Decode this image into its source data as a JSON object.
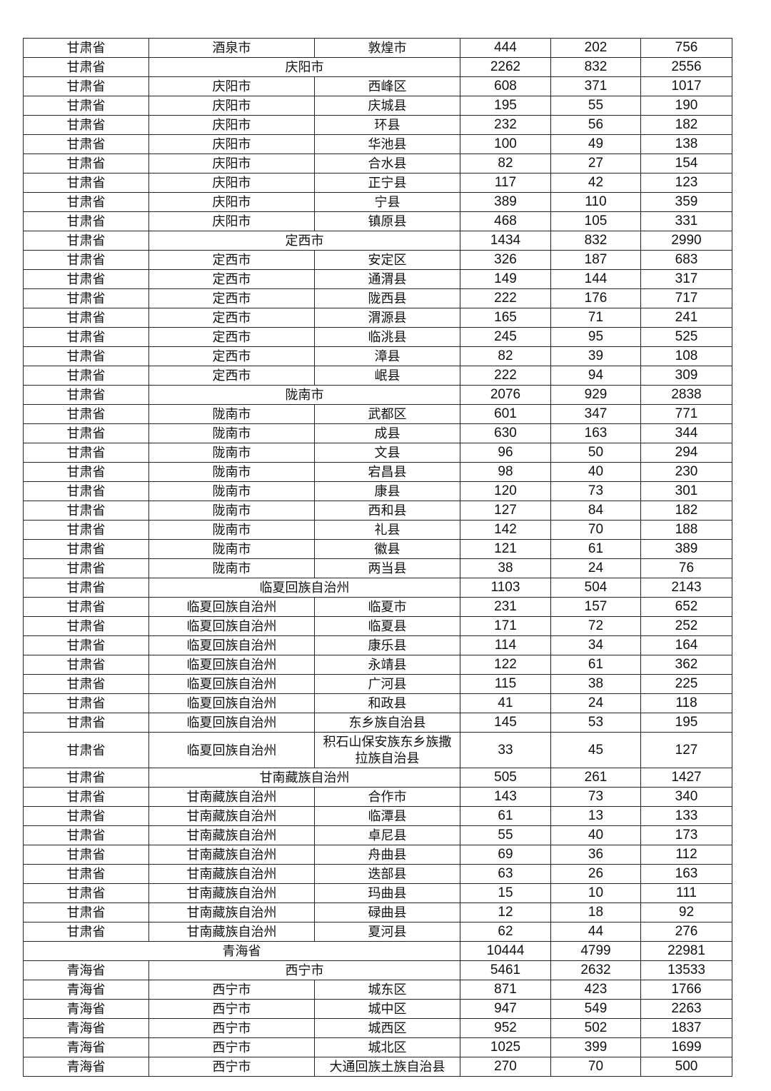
{
  "rows": [
    {
      "type": "county",
      "province": "甘肃省",
      "city": "酒泉市",
      "county": "敦煌市",
      "v1": "444",
      "v2": "202",
      "v3": "756"
    },
    {
      "type": "city",
      "province": "甘肃省",
      "city": "庆阳市",
      "v1": "2262",
      "v2": "832",
      "v3": "2556"
    },
    {
      "type": "county",
      "province": "甘肃省",
      "city": "庆阳市",
      "county": "西峰区",
      "v1": "608",
      "v2": "371",
      "v3": "1017"
    },
    {
      "type": "county",
      "province": "甘肃省",
      "city": "庆阳市",
      "county": "庆城县",
      "v1": "195",
      "v2": "55",
      "v3": "190"
    },
    {
      "type": "county",
      "province": "甘肃省",
      "city": "庆阳市",
      "county": "环县",
      "v1": "232",
      "v2": "56",
      "v3": "182"
    },
    {
      "type": "county",
      "province": "甘肃省",
      "city": "庆阳市",
      "county": "华池县",
      "v1": "100",
      "v2": "49",
      "v3": "138"
    },
    {
      "type": "county",
      "province": "甘肃省",
      "city": "庆阳市",
      "county": "合水县",
      "v1": "82",
      "v2": "27",
      "v3": "154"
    },
    {
      "type": "county",
      "province": "甘肃省",
      "city": "庆阳市",
      "county": "正宁县",
      "v1": "117",
      "v2": "42",
      "v3": "123"
    },
    {
      "type": "county",
      "province": "甘肃省",
      "city": "庆阳市",
      "county": "宁县",
      "v1": "389",
      "v2": "110",
      "v3": "359"
    },
    {
      "type": "county",
      "province": "甘肃省",
      "city": "庆阳市",
      "county": "镇原县",
      "v1": "468",
      "v2": "105",
      "v3": "331"
    },
    {
      "type": "city",
      "province": "甘肃省",
      "city": "定西市",
      "v1": "1434",
      "v2": "832",
      "v3": "2990"
    },
    {
      "type": "county",
      "province": "甘肃省",
      "city": "定西市",
      "county": "安定区",
      "v1": "326",
      "v2": "187",
      "v3": "683"
    },
    {
      "type": "county",
      "province": "甘肃省",
      "city": "定西市",
      "county": "通渭县",
      "v1": "149",
      "v2": "144",
      "v3": "317"
    },
    {
      "type": "county",
      "province": "甘肃省",
      "city": "定西市",
      "county": "陇西县",
      "v1": "222",
      "v2": "176",
      "v3": "717"
    },
    {
      "type": "county",
      "province": "甘肃省",
      "city": "定西市",
      "county": "渭源县",
      "v1": "165",
      "v2": "71",
      "v3": "241"
    },
    {
      "type": "county",
      "province": "甘肃省",
      "city": "定西市",
      "county": "临洮县",
      "v1": "245",
      "v2": "95",
      "v3": "525"
    },
    {
      "type": "county",
      "province": "甘肃省",
      "city": "定西市",
      "county": "漳县",
      "v1": "82",
      "v2": "39",
      "v3": "108"
    },
    {
      "type": "county",
      "province": "甘肃省",
      "city": "定西市",
      "county": "岷县",
      "v1": "222",
      "v2": "94",
      "v3": "309"
    },
    {
      "type": "city",
      "province": "甘肃省",
      "city": "陇南市",
      "v1": "2076",
      "v2": "929",
      "v3": "2838"
    },
    {
      "type": "county",
      "province": "甘肃省",
      "city": "陇南市",
      "county": "武都区",
      "v1": "601",
      "v2": "347",
      "v3": "771"
    },
    {
      "type": "county",
      "province": "甘肃省",
      "city": "陇南市",
      "county": "成县",
      "v1": "630",
      "v2": "163",
      "v3": "344"
    },
    {
      "type": "county",
      "province": "甘肃省",
      "city": "陇南市",
      "county": "文县",
      "v1": "96",
      "v2": "50",
      "v3": "294"
    },
    {
      "type": "county",
      "province": "甘肃省",
      "city": "陇南市",
      "county": "宕昌县",
      "v1": "98",
      "v2": "40",
      "v3": "230"
    },
    {
      "type": "county",
      "province": "甘肃省",
      "city": "陇南市",
      "county": "康县",
      "v1": "120",
      "v2": "73",
      "v3": "301"
    },
    {
      "type": "county",
      "province": "甘肃省",
      "city": "陇南市",
      "county": "西和县",
      "v1": "127",
      "v2": "84",
      "v3": "182"
    },
    {
      "type": "county",
      "province": "甘肃省",
      "city": "陇南市",
      "county": "礼县",
      "v1": "142",
      "v2": "70",
      "v3": "188"
    },
    {
      "type": "county",
      "province": "甘肃省",
      "city": "陇南市",
      "county": "徽县",
      "v1": "121",
      "v2": "61",
      "v3": "389"
    },
    {
      "type": "county",
      "province": "甘肃省",
      "city": "陇南市",
      "county": "两当县",
      "v1": "38",
      "v2": "24",
      "v3": "76"
    },
    {
      "type": "city",
      "province": "甘肃省",
      "city": "临夏回族自治州",
      "v1": "1103",
      "v2": "504",
      "v3": "2143"
    },
    {
      "type": "county",
      "province": "甘肃省",
      "city": "临夏回族自治州",
      "county": "临夏市",
      "v1": "231",
      "v2": "157",
      "v3": "652"
    },
    {
      "type": "county",
      "province": "甘肃省",
      "city": "临夏回族自治州",
      "county": "临夏县",
      "v1": "171",
      "v2": "72",
      "v3": "252"
    },
    {
      "type": "county",
      "province": "甘肃省",
      "city": "临夏回族自治州",
      "county": "康乐县",
      "v1": "114",
      "v2": "34",
      "v3": "164"
    },
    {
      "type": "county",
      "province": "甘肃省",
      "city": "临夏回族自治州",
      "county": "永靖县",
      "v1": "122",
      "v2": "61",
      "v3": "362"
    },
    {
      "type": "county",
      "province": "甘肃省",
      "city": "临夏回族自治州",
      "county": "广河县",
      "v1": "115",
      "v2": "38",
      "v3": "225"
    },
    {
      "type": "county",
      "province": "甘肃省",
      "city": "临夏回族自治州",
      "county": "和政县",
      "v1": "41",
      "v2": "24",
      "v3": "118"
    },
    {
      "type": "county",
      "province": "甘肃省",
      "city": "临夏回族自治州",
      "county": "东乡族自治县",
      "v1": "145",
      "v2": "53",
      "v3": "195"
    },
    {
      "type": "county",
      "tall": true,
      "province": "甘肃省",
      "city": "临夏回族自治州",
      "county": "积石山保安族东乡族撒拉族自治县",
      "v1": "33",
      "v2": "45",
      "v3": "127"
    },
    {
      "type": "city",
      "province": "甘肃省",
      "city": "甘南藏族自治州",
      "v1": "505",
      "v2": "261",
      "v3": "1427"
    },
    {
      "type": "county",
      "province": "甘肃省",
      "city": "甘南藏族自治州",
      "county": "合作市",
      "v1": "143",
      "v2": "73",
      "v3": "340"
    },
    {
      "type": "county",
      "province": "甘肃省",
      "city": "甘南藏族自治州",
      "county": "临潭县",
      "v1": "61",
      "v2": "13",
      "v3": "133"
    },
    {
      "type": "county",
      "province": "甘肃省",
      "city": "甘南藏族自治州",
      "county": "卓尼县",
      "v1": "55",
      "v2": "40",
      "v3": "173"
    },
    {
      "type": "county",
      "province": "甘肃省",
      "city": "甘南藏族自治州",
      "county": "舟曲县",
      "v1": "69",
      "v2": "36",
      "v3": "112"
    },
    {
      "type": "county",
      "province": "甘肃省",
      "city": "甘南藏族自治州",
      "county": "迭部县",
      "v1": "63",
      "v2": "26",
      "v3": "163"
    },
    {
      "type": "county",
      "province": "甘肃省",
      "city": "甘南藏族自治州",
      "county": "玛曲县",
      "v1": "15",
      "v2": "10",
      "v3": "111"
    },
    {
      "type": "county",
      "province": "甘肃省",
      "city": "甘南藏族自治州",
      "county": "碌曲县",
      "v1": "12",
      "v2": "18",
      "v3": "92"
    },
    {
      "type": "county",
      "province": "甘肃省",
      "city": "甘南藏族自治州",
      "county": "夏河县",
      "v1": "62",
      "v2": "44",
      "v3": "276"
    },
    {
      "type": "province",
      "province": "青海省",
      "v1": "10444",
      "v2": "4799",
      "v3": "22981"
    },
    {
      "type": "city",
      "province": "青海省",
      "city": "西宁市",
      "v1": "5461",
      "v2": "2632",
      "v3": "13533"
    },
    {
      "type": "county",
      "province": "青海省",
      "city": "西宁市",
      "county": "城东区",
      "v1": "871",
      "v2": "423",
      "v3": "1766"
    },
    {
      "type": "county",
      "province": "青海省",
      "city": "西宁市",
      "county": "城中区",
      "v1": "947",
      "v2": "549",
      "v3": "2263"
    },
    {
      "type": "county",
      "province": "青海省",
      "city": "西宁市",
      "county": "城西区",
      "v1": "952",
      "v2": "502",
      "v3": "1837"
    },
    {
      "type": "county",
      "province": "青海省",
      "city": "西宁市",
      "county": "城北区",
      "v1": "1025",
      "v2": "399",
      "v3": "1699"
    },
    {
      "type": "county",
      "province": "青海省",
      "city": "西宁市",
      "county": "大通回族土族自治县",
      "v1": "270",
      "v2": "70",
      "v3": "500"
    }
  ]
}
